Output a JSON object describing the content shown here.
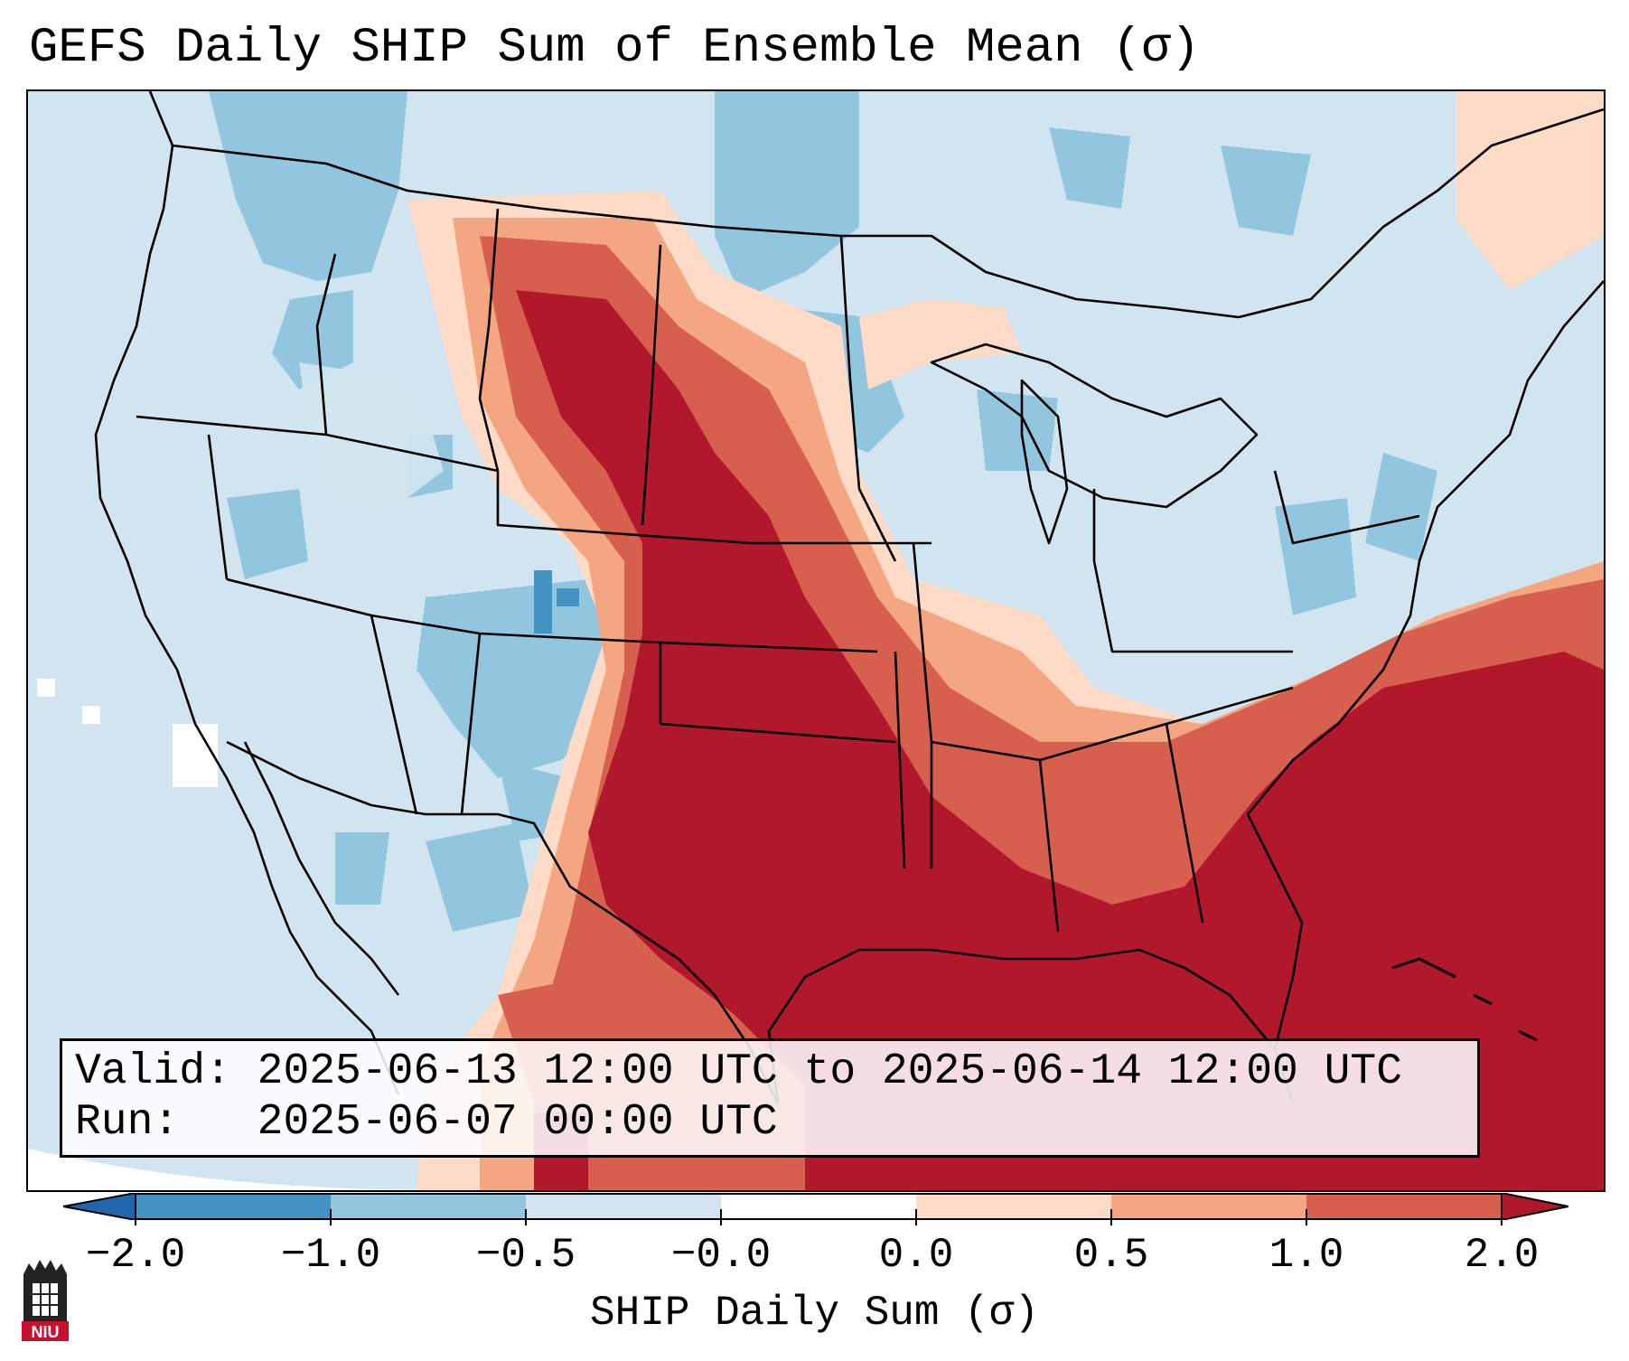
{
  "title": "GEFS Daily SHIP Sum of Ensemble Mean (σ)",
  "info": {
    "valid_line": "Valid: 2025-06-13 12:00 UTC to 2025-06-14 12:00 UTC",
    "run_line": "Run:   2025-06-07 00:00 UTC"
  },
  "colorbar": {
    "label": "SHIP Daily Sum (σ)",
    "tick_labels": [
      "−2.0",
      "−1.0",
      "−0.5",
      "−0.0",
      "0.0",
      "0.5",
      "1.0",
      "2.0"
    ],
    "bins": [
      {
        "range": "< -2.0",
        "color": "#2166ac"
      },
      {
        "range": "-2.0 to -1.0",
        "color": "#4393c3"
      },
      {
        "range": "-1.0 to -0.5",
        "color": "#92c5de"
      },
      {
        "range": "-0.5 to -0.0",
        "color": "#d1e5f0"
      },
      {
        "range": "-0.0 to 0.0",
        "color": "#ffffff"
      },
      {
        "range": "0.0 to 0.5",
        "color": "#fddbc7"
      },
      {
        "range": "0.5 to 1.0",
        "color": "#f4a582"
      },
      {
        "range": "1.0 to 2.0",
        "color": "#d6604d"
      },
      {
        "range": "> 2.0",
        "color": "#b2182b"
      }
    ]
  },
  "logo": {
    "text": "NIU",
    "name": "Northern Illinois University logo"
  }
}
